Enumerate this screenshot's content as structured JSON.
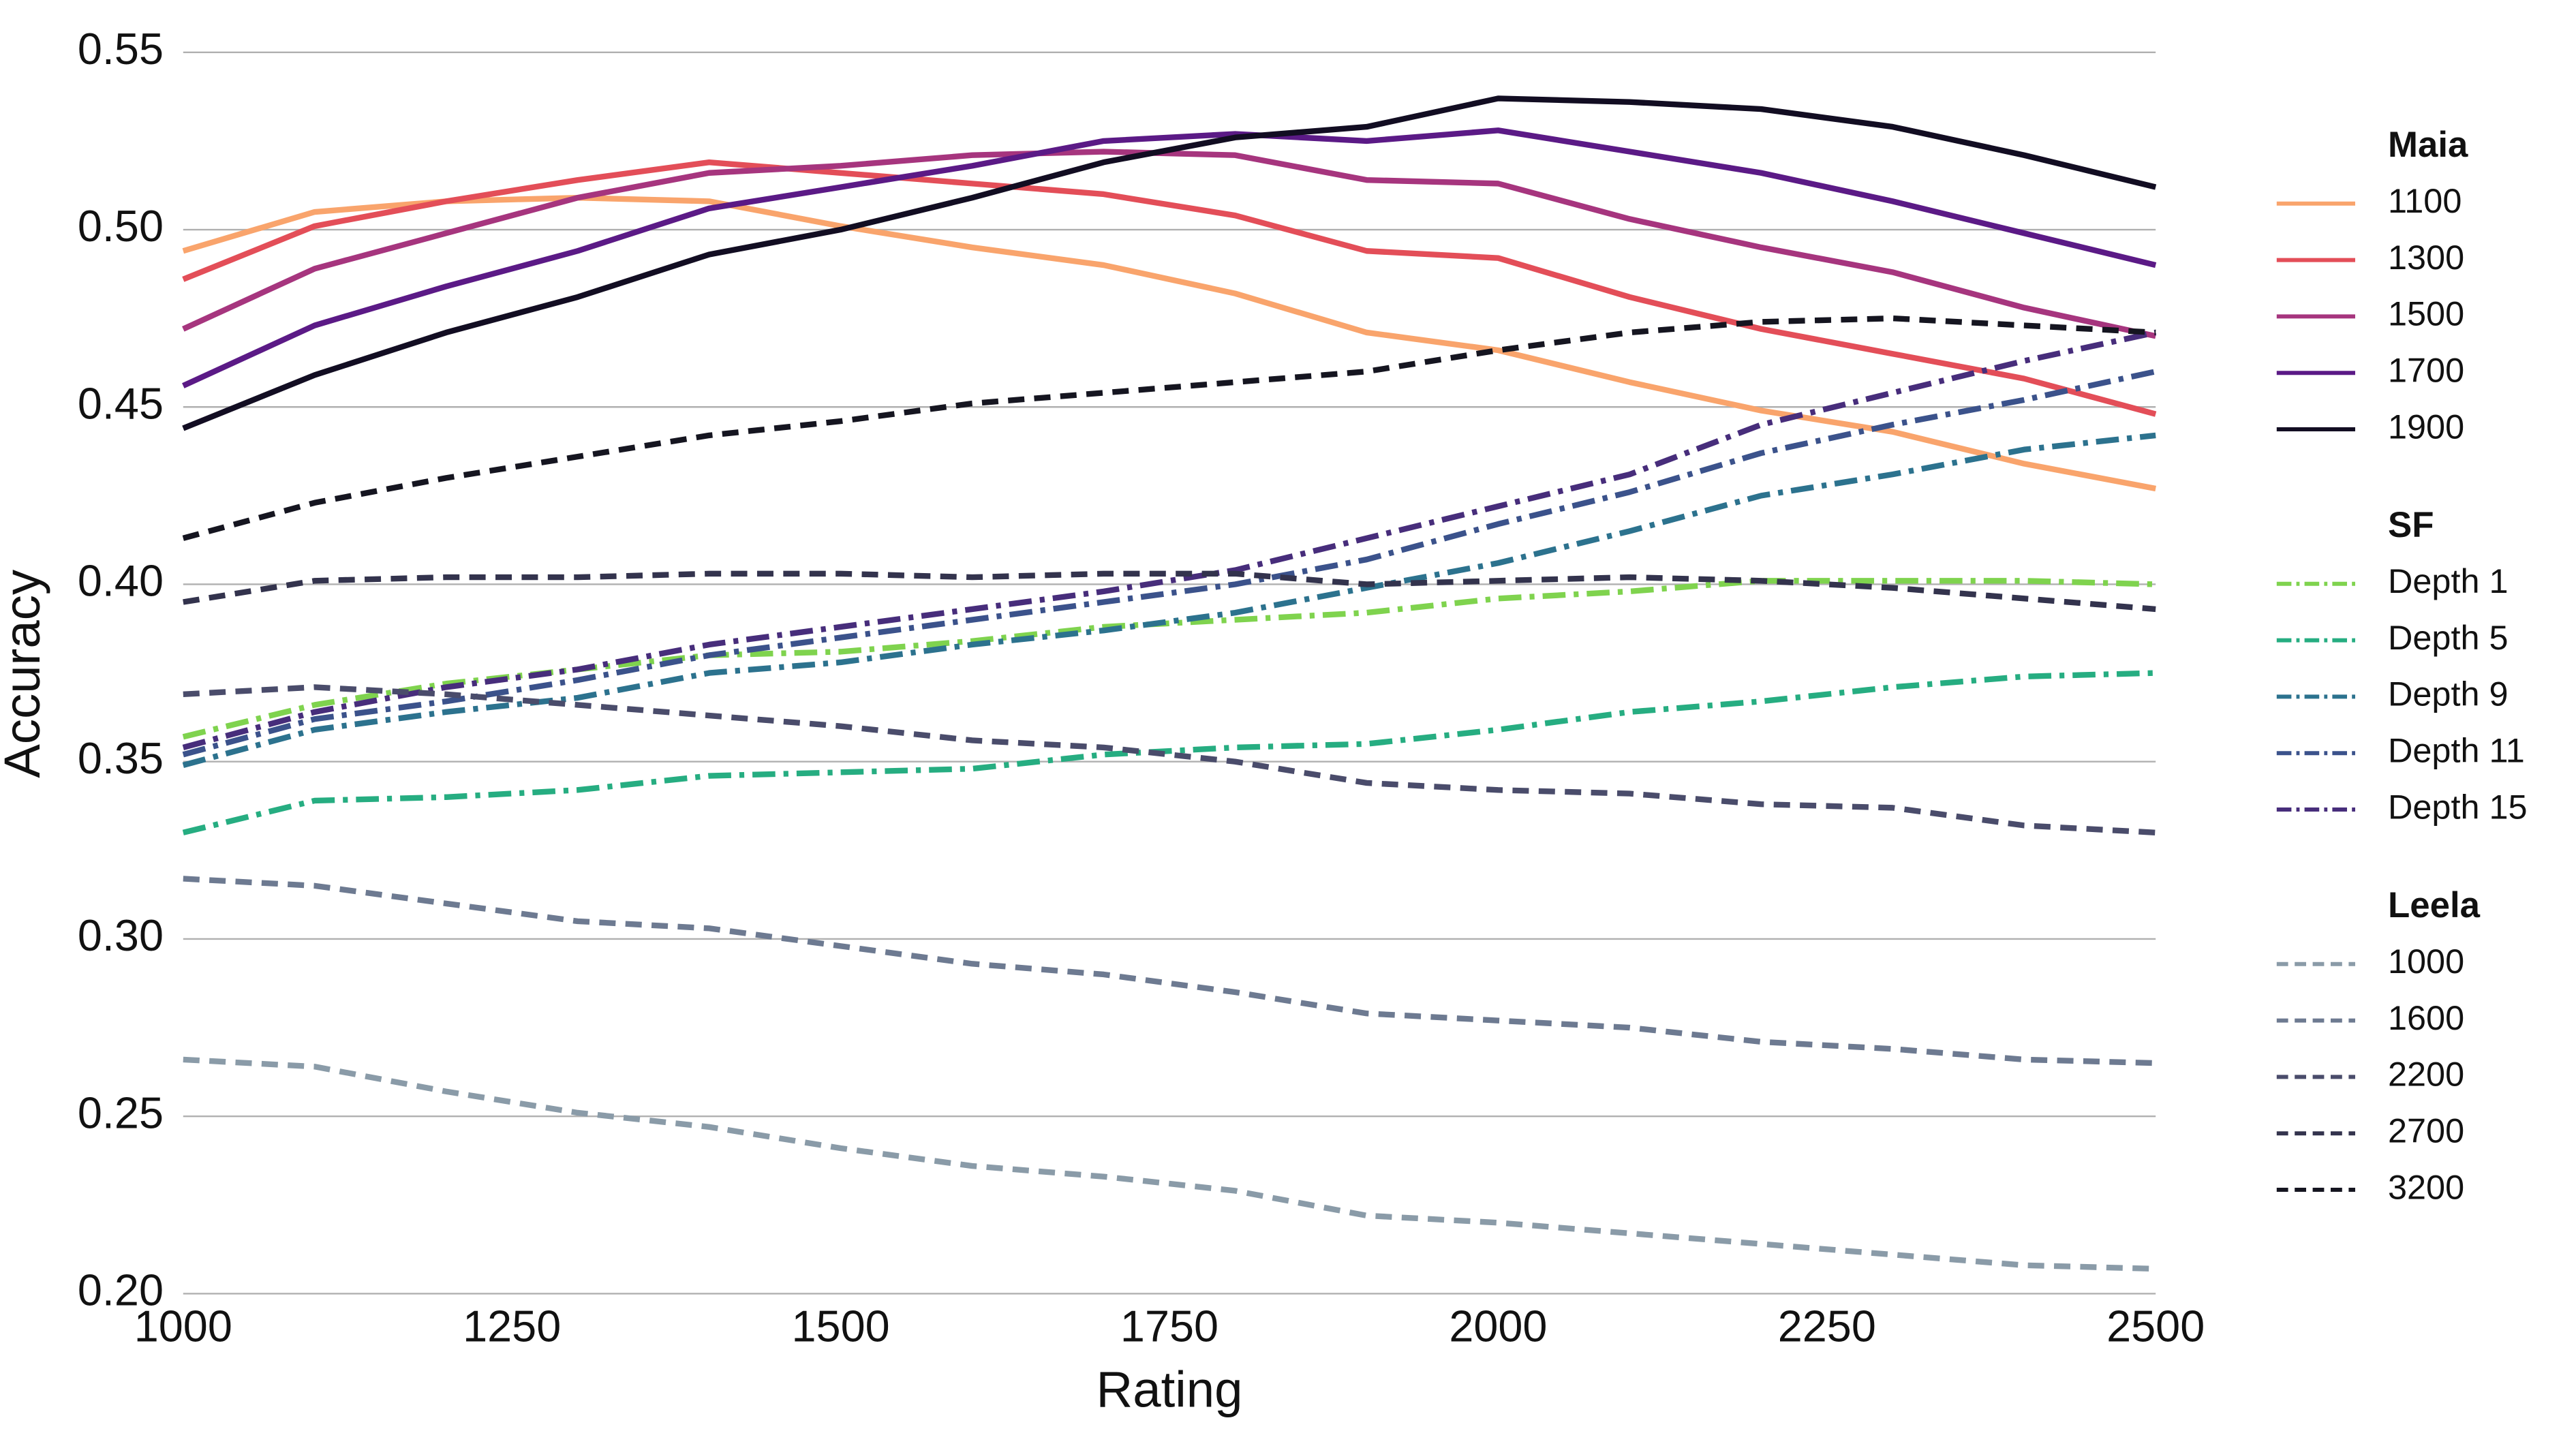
{
  "chart_data": {
    "type": "line",
    "x_label": "Rating",
    "y_label": "Accuracy",
    "x": [
      1000,
      1100,
      1200,
      1300,
      1400,
      1500,
      1600,
      1700,
      1800,
      1900,
      2000,
      2100,
      2200,
      2300,
      2400,
      2500
    ],
    "xlim": [
      1000,
      2500
    ],
    "xticks": [
      1000,
      1250,
      1500,
      1750,
      2000,
      2250,
      2500
    ],
    "ylim": [
      0.2,
      0.55
    ],
    "yticks": [
      {
        "value": 0.2,
        "label": "0.20"
      },
      {
        "value": 0.25,
        "label": "0.25"
      },
      {
        "value": 0.3,
        "label": "0.30"
      },
      {
        "value": 0.35,
        "label": "0.35"
      },
      {
        "value": 0.4,
        "label": "0.40"
      },
      {
        "value": 0.45,
        "label": "0.45"
      },
      {
        "value": 0.5,
        "label": "0.50"
      },
      {
        "value": 0.55,
        "label": "0.55"
      }
    ],
    "grid": true,
    "legend_position": "right",
    "series_groups": [
      {
        "name": "Maia",
        "linestyle": "solid",
        "series": [
          {
            "name": "1100",
            "color": "#f9a46c",
            "values": [
              0.494,
              0.505,
              0.508,
              0.509,
              0.508,
              0.501,
              0.495,
              0.49,
              0.482,
              0.471,
              0.466,
              0.457,
              0.449,
              0.443,
              0.434,
              0.427
            ]
          },
          {
            "name": "1300",
            "color": "#e34e58",
            "values": [
              0.486,
              0.501,
              0.508,
              0.514,
              0.519,
              0.516,
              0.513,
              0.51,
              0.504,
              0.494,
              0.492,
              0.481,
              0.472,
              0.465,
              0.458,
              0.448
            ]
          },
          {
            "name": "1500",
            "color": "#a6357e",
            "values": [
              0.472,
              0.489,
              0.499,
              0.509,
              0.516,
              0.518,
              0.521,
              0.522,
              0.521,
              0.514,
              0.513,
              0.503,
              0.495,
              0.488,
              0.478,
              0.47
            ]
          },
          {
            "name": "1700",
            "color": "#5b1a86",
            "values": [
              0.456,
              0.473,
              0.484,
              0.494,
              0.506,
              0.512,
              0.518,
              0.525,
              0.527,
              0.525,
              0.528,
              0.522,
              0.516,
              0.508,
              0.499,
              0.49
            ]
          },
          {
            "name": "1900",
            "color": "#120d22",
            "values": [
              0.444,
              0.459,
              0.471,
              0.481,
              0.493,
              0.5,
              0.509,
              0.519,
              0.526,
              0.529,
              0.537,
              0.536,
              0.534,
              0.529,
              0.521,
              0.512
            ]
          }
        ]
      },
      {
        "name": "SF",
        "linestyle": "dashdot",
        "series": [
          {
            "name": "Depth 1",
            "color": "#7fd34e",
            "values": [
              0.357,
              0.366,
              0.372,
              0.376,
              0.38,
              0.381,
              0.384,
              0.388,
              0.39,
              0.392,
              0.396,
              0.398,
              0.401,
              0.401,
              0.401,
              0.4
            ]
          },
          {
            "name": "Depth 5",
            "color": "#26ad81",
            "values": [
              0.33,
              0.339,
              0.34,
              0.342,
              0.346,
              0.347,
              0.348,
              0.352,
              0.354,
              0.355,
              0.359,
              0.364,
              0.367,
              0.371,
              0.374,
              0.375
            ]
          },
          {
            "name": "Depth 9",
            "color": "#2c728e",
            "values": [
              0.349,
              0.359,
              0.364,
              0.368,
              0.375,
              0.378,
              0.383,
              0.387,
              0.392,
              0.399,
              0.406,
              0.415,
              0.425,
              0.431,
              0.438,
              0.442
            ]
          },
          {
            "name": "Depth 11",
            "color": "#3b528b",
            "values": [
              0.352,
              0.362,
              0.367,
              0.373,
              0.38,
              0.385,
              0.39,
              0.395,
              0.4,
              0.407,
              0.417,
              0.426,
              0.437,
              0.445,
              0.452,
              0.46
            ]
          },
          {
            "name": "Depth 15",
            "color": "#472d7b",
            "values": [
              0.354,
              0.364,
              0.371,
              0.376,
              0.383,
              0.388,
              0.393,
              0.398,
              0.404,
              0.413,
              0.422,
              0.431,
              0.445,
              0.454,
              0.463,
              0.471
            ]
          }
        ]
      },
      {
        "name": "Leela",
        "linestyle": "dashed",
        "series": [
          {
            "name": "1000",
            "color": "#8a9ba8",
            "values": [
              0.266,
              0.264,
              0.257,
              0.251,
              0.247,
              0.241,
              0.236,
              0.233,
              0.229,
              0.222,
              0.22,
              0.217,
              0.214,
              0.211,
              0.208,
              0.207
            ]
          },
          {
            "name": "1600",
            "color": "#6d7a91",
            "values": [
              0.317,
              0.315,
              0.31,
              0.305,
              0.303,
              0.298,
              0.293,
              0.29,
              0.285,
              0.279,
              0.277,
              0.275,
              0.271,
              0.269,
              0.266,
              0.265
            ]
          },
          {
            "name": "2200",
            "color": "#4a4c6b",
            "values": [
              0.369,
              0.371,
              0.369,
              0.366,
              0.363,
              0.36,
              0.356,
              0.354,
              0.35,
              0.344,
              0.342,
              0.341,
              0.338,
              0.337,
              0.332,
              0.33
            ]
          },
          {
            "name": "2700",
            "color": "#33334d",
            "values": [
              0.395,
              0.401,
              0.402,
              0.402,
              0.403,
              0.403,
              0.402,
              0.403,
              0.403,
              0.4,
              0.401,
              0.402,
              0.401,
              0.399,
              0.396,
              0.393
            ]
          },
          {
            "name": "3200",
            "color": "#151520",
            "values": [
              0.413,
              0.423,
              0.43,
              0.436,
              0.442,
              0.446,
              0.451,
              0.454,
              0.457,
              0.46,
              0.466,
              0.471,
              0.474,
              0.475,
              0.473,
              0.471
            ]
          }
        ]
      }
    ]
  }
}
